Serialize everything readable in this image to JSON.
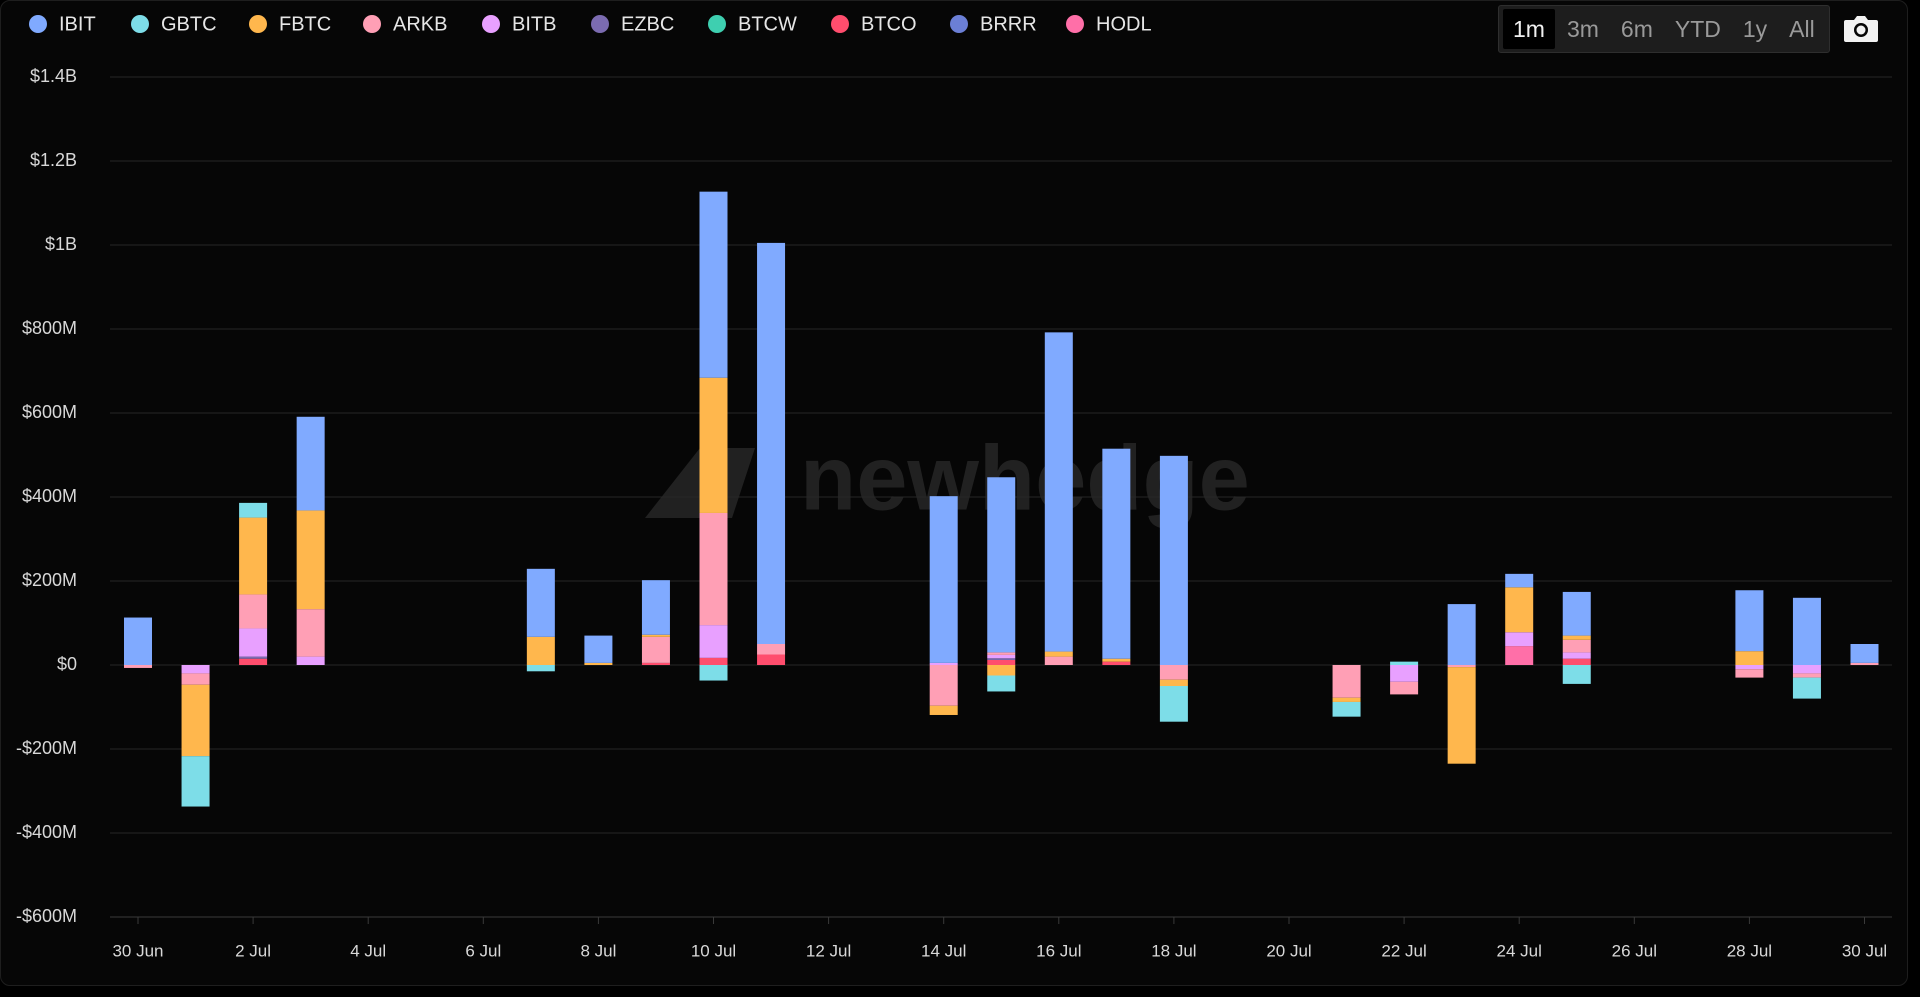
{
  "chart_data": {
    "type": "stacked_bar",
    "watermark": "newhedge",
    "range_buttons": [
      "1m",
      "3m",
      "6m",
      "YTD",
      "1y",
      "All"
    ],
    "categories": [
      "30 Jun",
      null,
      "2 Jul",
      null,
      "4 Jul",
      null,
      "6 Jul",
      null,
      "8 Jul",
      null,
      "10 Jul",
      null,
      "12 Jul",
      null,
      "14 Jul",
      null,
      "16 Jul",
      null,
      "18 Jul",
      null,
      "20 Jul",
      null,
      "22 Jul",
      null,
      "24 Jul",
      null,
      "26 Jul",
      null,
      "28 Jul",
      null,
      "30 Jul"
    ],
    "ylim": [
      -600,
      1400
    ],
    "yticks": [
      {
        "value": -600,
        "label": "-$600M"
      },
      {
        "value": -400,
        "label": "-$400M"
      },
      {
        "value": -200,
        "label": "-$200M"
      },
      {
        "value": 0,
        "label": "$0"
      },
      {
        "value": 200,
        "label": "$200M"
      },
      {
        "value": 400,
        "label": "$400M"
      },
      {
        "value": 600,
        "label": "$600M"
      },
      {
        "value": 800,
        "label": "$800M"
      },
      {
        "value": 1000,
        "label": "$1B"
      },
      {
        "value": 1200,
        "label": "$1.2B"
      },
      {
        "value": 1400,
        "label": "$1.4B"
      }
    ],
    "grid": true,
    "series": [
      {
        "name": "IBIT",
        "color": "#80aaff",
        "values": [
          113,
          0,
          0,
          223,
          null,
          null,
          null,
          162,
          65,
          130,
          443,
          955,
          null,
          null,
          397,
          417,
          760,
          500,
          498,
          null,
          null,
          0,
          0,
          145,
          32,
          104,
          null,
          null,
          145,
          160,
          45
        ]
      },
      {
        "name": "GBTC",
        "color": "#7ddde8",
        "values": [
          0,
          -120,
          35,
          0,
          null,
          null,
          null,
          -15,
          0,
          0,
          -37,
          0,
          null,
          null,
          0,
          -38,
          0,
          0,
          -85,
          null,
          null,
          -35,
          8,
          0,
          0,
          -45,
          null,
          null,
          0,
          -50,
          0
        ]
      },
      {
        "name": "FBTC",
        "color": "#ffb74d",
        "values": [
          0,
          -170,
          183,
          235,
          null,
          null,
          null,
          67,
          5,
          5,
          322,
          0,
          null,
          null,
          -22,
          -25,
          12,
          7,
          -15,
          null,
          null,
          -10,
          0,
          -230,
          107,
          10,
          null,
          null,
          33,
          0,
          0
        ]
      },
      {
        "name": "ARKB",
        "color": "#ff9fb5",
        "values": [
          -7,
          -27,
          81,
          113,
          null,
          null,
          null,
          0,
          0,
          62,
          267,
          25,
          null,
          null,
          -97,
          6,
          20,
          0,
          -35,
          null,
          null,
          -78,
          -30,
          -5,
          0,
          30,
          null,
          null,
          -20,
          -10,
          5
        ]
      },
      {
        "name": "BITB",
        "color": "#e8a0ff",
        "values": [
          0,
          -20,
          67,
          20,
          null,
          null,
          null,
          0,
          0,
          0,
          78,
          0,
          null,
          null,
          5,
          8,
          0,
          0,
          0,
          null,
          null,
          0,
          -40,
          0,
          33,
          15,
          null,
          null,
          -10,
          -20,
          0
        ]
      },
      {
        "name": "EZBC",
        "color": "#7b6bb0",
        "values": [
          0,
          0,
          5,
          0,
          null,
          null,
          null,
          0,
          0,
          0,
          0,
          0,
          null,
          null,
          0,
          4,
          0,
          0,
          0,
          null,
          null,
          0,
          0,
          0,
          0,
          0,
          null,
          null,
          0,
          0,
          0
        ]
      },
      {
        "name": "BTCW",
        "color": "#3ecfb0",
        "values": [
          0,
          0,
          0,
          0,
          null,
          null,
          null,
          0,
          0,
          0,
          0,
          0,
          null,
          null,
          0,
          0,
          0,
          0,
          0,
          null,
          null,
          0,
          0,
          0,
          0,
          0,
          null,
          null,
          0,
          0,
          0
        ]
      },
      {
        "name": "BTCO",
        "color": "#ff4d6d",
        "values": [
          0,
          0,
          15,
          0,
          null,
          null,
          null,
          0,
          0,
          5,
          17,
          25,
          null,
          null,
          0,
          12,
          0,
          8,
          0,
          null,
          null,
          0,
          0,
          0,
          0,
          15,
          null,
          null,
          0,
          0,
          0
        ]
      },
      {
        "name": "BRRR",
        "color": "#6b7fd6",
        "values": [
          0,
          0,
          0,
          0,
          null,
          null,
          null,
          0,
          0,
          0,
          0,
          0,
          null,
          null,
          0,
          0,
          0,
          0,
          0,
          null,
          null,
          0,
          0,
          0,
          0,
          0,
          null,
          null,
          0,
          0,
          0
        ]
      },
      {
        "name": "HODL",
        "color": "#ff6fa8",
        "values": [
          0,
          0,
          0,
          0,
          null,
          null,
          null,
          0,
          0,
          0,
          0,
          0,
          null,
          null,
          0,
          0,
          0,
          0,
          0,
          null,
          null,
          0,
          0,
          0,
          45,
          0,
          null,
          null,
          0,
          0,
          0
        ]
      }
    ]
  }
}
